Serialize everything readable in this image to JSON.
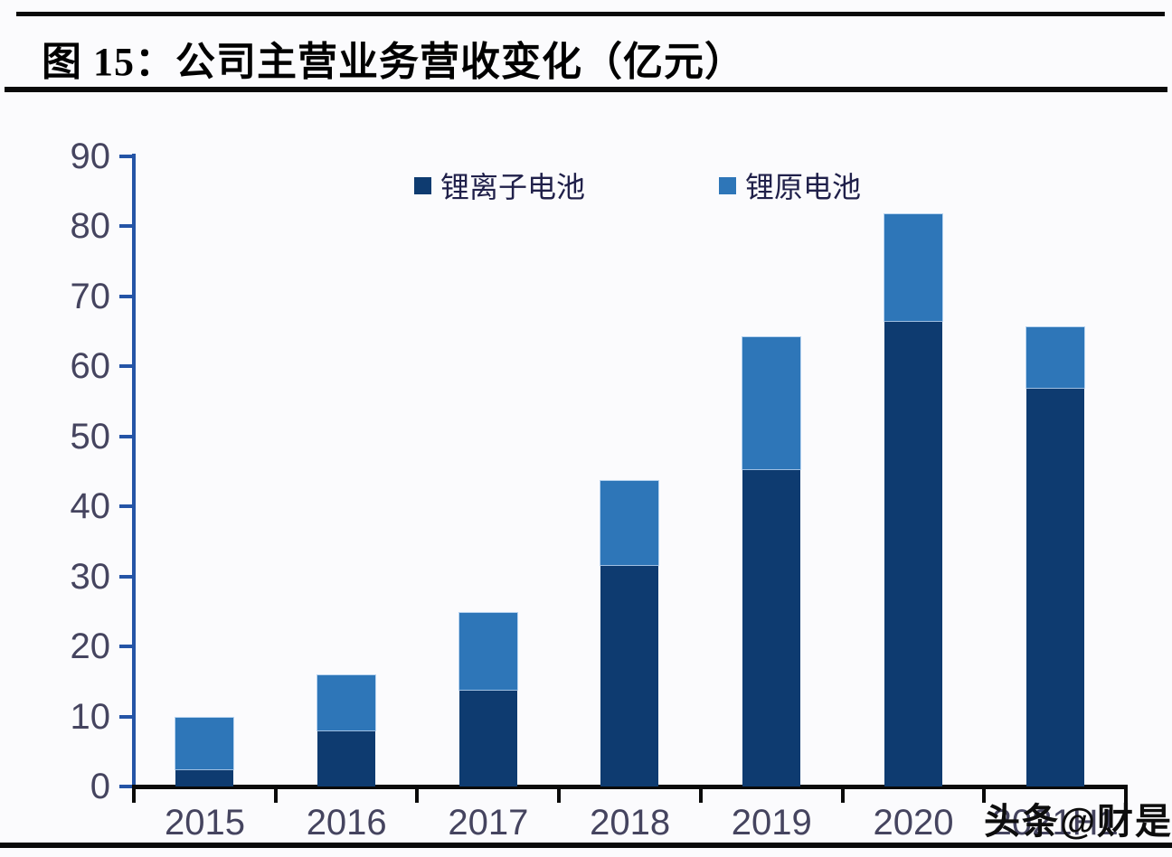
{
  "figure": {
    "title": "图 15：公司主营业务营收变化（亿元）",
    "watermark": "头条@财是"
  },
  "chart_data": {
    "type": "bar",
    "stacked": true,
    "title": "公司主营业务营收变化（亿元）",
    "categories": [
      "2015",
      "2016",
      "2017",
      "2018",
      "2019",
      "2020",
      "2021H1"
    ],
    "series": [
      {
        "name": "锂离子电池",
        "color": "#0e3b70",
        "values": [
          2.5,
          8.0,
          13.8,
          31.6,
          45.3,
          66.5,
          57.0
        ]
      },
      {
        "name": "锂原电池",
        "color": "#2e76b8",
        "values": [
          7.3,
          7.9,
          11.0,
          12.0,
          18.9,
          15.2,
          8.6
        ]
      }
    ],
    "totals": [
      9.8,
      15.9,
      24.8,
      43.6,
      64.2,
      81.7,
      65.6
    ],
    "xlabel": "",
    "ylabel": "",
    "ylim": [
      0,
      90
    ],
    "yticks": [
      0,
      10,
      20,
      30,
      40,
      50,
      60,
      70,
      80,
      90
    ],
    "grid": false,
    "legend_position": "top-center",
    "style": {
      "y_axis_color": "#2454a6",
      "x_axis_color": "#0a0a0a",
      "tick_label_color": "#45445f",
      "background": "#fbfbfd"
    }
  }
}
